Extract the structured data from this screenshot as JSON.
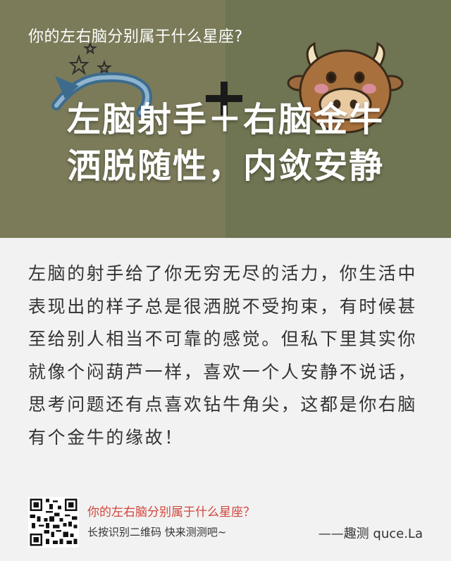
{
  "header": {
    "quiz_title": "你的左右脑分别属于什么星座?"
  },
  "hero": {
    "headline_line1": "左脑射手＋右脑金牛",
    "headline_line2": "洒脱随性，内敛安静",
    "left_art_icon": "sagittarius-symbol-icon",
    "right_art_icon": "cartoon-bull-icon",
    "plus_icon": "plus-icon",
    "colors": {
      "left_bg": "#7b7b5a",
      "right_bg": "#6f7452"
    }
  },
  "result": {
    "lines": [
      "左脑的射手给了你无穷无尽的活力，你生活中",
      "表现出的样子总是很洒脱不受拘束，有时候甚",
      "至给别人相当不可靠的感觉。但私下里其实你",
      "就像个闷葫芦一样，喜欢一个人安静不说话，",
      "思考问题还有点喜欢钻牛角尖，这都是你右脑",
      "有个金牛的缘故！"
    ]
  },
  "footer": {
    "qr_icon": "qr-code-icon",
    "title": "你的左右脑分别属于什么星座？",
    "subtitle": "长按识别二维码  快来测测吧~",
    "brand": "——趣测 quce.La",
    "colors": {
      "title": "#d0453a"
    }
  }
}
